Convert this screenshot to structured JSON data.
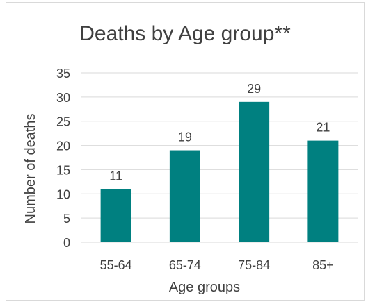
{
  "chart_data": {
    "type": "bar",
    "title": "Deaths by Age group**",
    "xlabel": "Age groups",
    "ylabel": "Number of deaths",
    "categories": [
      "55-64",
      "65-74",
      "75-84",
      "85+"
    ],
    "values": [
      11,
      19,
      29,
      21
    ],
    "ylim": [
      0,
      35
    ],
    "yticks": [
      0,
      5,
      10,
      15,
      20,
      25,
      30,
      35
    ],
    "grid": true,
    "legend": "none",
    "bar_color": "#008080",
    "gridline_color": "#d9d9d9",
    "text_color": "#404040"
  }
}
